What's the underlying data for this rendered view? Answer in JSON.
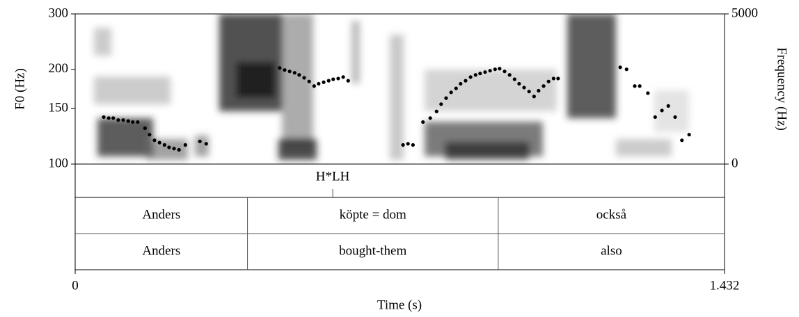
{
  "chart_data": {
    "type": "scatter",
    "xlabel": "Time (s)",
    "ylabel": "F0 (Hz)",
    "y2label": "Frequency (Hz)",
    "xlim": [
      0,
      1.432
    ],
    "xticks": [
      0,
      1.432
    ],
    "ylim": [
      100,
      300
    ],
    "yticks": [
      100,
      150,
      200,
      300
    ],
    "log_y": true,
    "y2lim": [
      0,
      5000
    ],
    "y2ticks": [
      0,
      5000
    ],
    "series": [
      {
        "name": "F0",
        "color": "#000000",
        "x": [
          0.063,
          0.074,
          0.084,
          0.095,
          0.106,
          0.117,
          0.127,
          0.138,
          0.154,
          0.164,
          0.175,
          0.186,
          0.197,
          0.207,
          0.218,
          0.229,
          0.243,
          0.275,
          0.289,
          0.451,
          0.462,
          0.473,
          0.484,
          0.494,
          0.505,
          0.516,
          0.527,
          0.537,
          0.548,
          0.559,
          0.569,
          0.58,
          0.591,
          0.602,
          0.723,
          0.734,
          0.745,
          0.767,
          0.783,
          0.797,
          0.807,
          0.818,
          0.829,
          0.84,
          0.85,
          0.861,
          0.872,
          0.883,
          0.893,
          0.904,
          0.915,
          0.926,
          0.936,
          0.947,
          0.958,
          0.969,
          0.979,
          0.99,
          1.001,
          1.012,
          1.022,
          1.033,
          1.044,
          1.055,
          1.065,
          1.202,
          1.216,
          1.234,
          1.245,
          1.263,
          1.279,
          1.294,
          1.308,
          1.323,
          1.338,
          1.354
        ],
        "values": [
          141,
          140,
          140,
          138,
          138,
          137,
          136,
          136,
          130,
          124,
          119,
          117,
          115,
          113,
          112,
          111,
          115,
          118,
          116,
          202,
          199,
          197,
          195,
          192,
          188,
          183,
          177,
          180,
          182,
          184,
          186,
          187,
          189,
          184,
          115,
          116,
          115,
          136,
          140,
          147,
          155,
          162,
          169,
          174,
          180,
          184,
          189,
          192,
          194,
          196,
          198,
          200,
          201,
          197,
          192,
          186,
          180,
          175,
          170,
          164,
          171,
          177,
          183,
          187,
          187,
          203,
          200,
          177,
          177,
          168,
          141,
          148,
          153,
          141,
          119,
          124
        ]
      }
    ],
    "tiers": [
      {
        "points": [
          0.568
        ],
        "labels": [
          "H*LH"
        ]
      },
      {
        "boundaries": [
          0.38,
          0.933
        ],
        "labels": [
          "Anders",
          "köpte = dom",
          "också"
        ]
      },
      {
        "boundaries": [
          0.38,
          0.933
        ],
        "labels": [
          "Anders",
          "bought-them",
          "also"
        ]
      }
    ]
  }
}
